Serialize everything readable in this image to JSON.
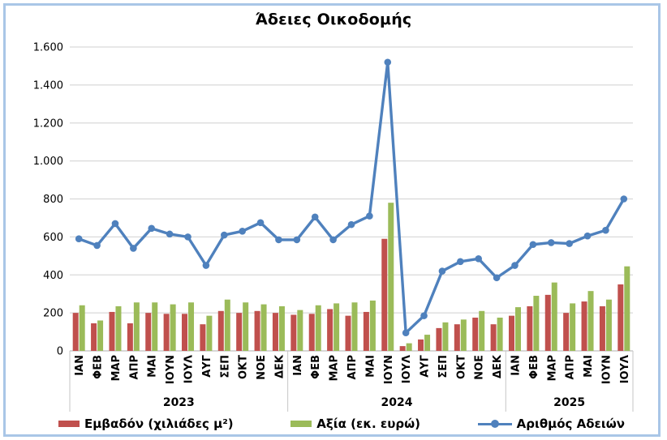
{
  "chart_data": {
    "type": "bar",
    "subtype": "grouped-bars-with-line-overlay",
    "title": "Άδειες Οικοδομής",
    "categories": [
      "ΙΑΝ",
      "ΦΕΒ",
      "ΜΑΡ",
      "ΑΠΡ",
      "ΜΑΙ",
      "ΙΟΥΝ",
      "ΙΟΥΛ",
      "ΑΥΓ",
      "ΣΕΠ",
      "ΟΚΤ",
      "ΝΟΕ",
      "ΔΕΚ",
      "ΙΑΝ",
      "ΦΕΒ",
      "ΜΑΡ",
      "ΑΠΡ",
      "ΜΑΙ",
      "ΙΟΥΝ",
      "ΙΟΥΛ",
      "ΑΥΓ",
      "ΣΕΠ",
      "ΟΚΤ",
      "ΝΟΕ",
      "ΔΕΚ",
      "ΙΑΝ",
      "ΦΕΒ",
      "ΜΑΡ",
      "ΑΠΡ",
      "ΜΑΙ",
      "ΙΟΥΝ",
      "ΙΟΥΛ"
    ],
    "year_groups": [
      {
        "label": "2023",
        "count": 12
      },
      {
        "label": "2024",
        "count": 12
      },
      {
        "label": "2025",
        "count": 7
      }
    ],
    "series": [
      {
        "name": "Εμβαδόν (χιλιάδες μ²)",
        "type": "bar",
        "color": "#C0504D",
        "values": [
          200,
          145,
          205,
          145,
          200,
          195,
          195,
          140,
          210,
          200,
          210,
          200,
          190,
          195,
          220,
          185,
          205,
          590,
          25,
          60,
          120,
          140,
          175,
          140,
          185,
          235,
          295,
          200,
          260,
          235,
          350
        ]
      },
      {
        "name": "Αξία (εκ. ευρώ)",
        "type": "bar",
        "color": "#9BBB59",
        "values": [
          240,
          160,
          235,
          255,
          255,
          245,
          255,
          185,
          270,
          255,
          245,
          235,
          215,
          240,
          250,
          255,
          265,
          780,
          40,
          85,
          150,
          165,
          210,
          175,
          230,
          290,
          360,
          250,
          315,
          270,
          445
        ]
      },
      {
        "name": "Αριθμός Αδειών",
        "type": "line",
        "color": "#4F81BD",
        "values": [
          590,
          555,
          670,
          540,
          645,
          615,
          600,
          450,
          610,
          630,
          675,
          585,
          585,
          705,
          585,
          665,
          710,
          1520,
          95,
          185,
          420,
          470,
          485,
          385,
          450,
          560,
          570,
          565,
          605,
          635,
          800
        ]
      }
    ],
    "ylim": [
      0,
      1600
    ],
    "y_tick_step": 200,
    "y_ticks": [
      "0",
      "200",
      "400",
      "600",
      "800",
      "1.000",
      "1.200",
      "1.400",
      "1.600"
    ],
    "grid": true,
    "legend_position": "bottom",
    "colors": {
      "grid_line": "#D9D9D9",
      "axis_line": "#BFBFBF",
      "divider_line": "#C6C6C6",
      "frame_border": "#A9C6E7"
    }
  }
}
